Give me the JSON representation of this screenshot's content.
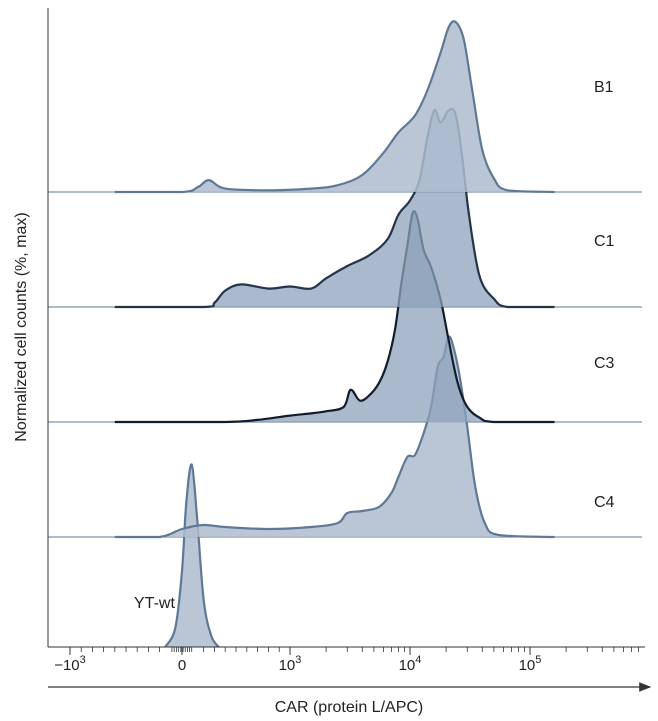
{
  "chart_data": {
    "type": "area",
    "title": "",
    "xlabel": "CAR (protein L/APC)",
    "ylabel": "Normalized cell counts (%, max)",
    "x_scale": "biexponential",
    "x_ticks": [
      {
        "label": "−10",
        "exp": "3",
        "value": -1000
      },
      {
        "label": "0",
        "exp": "",
        "value": 0
      },
      {
        "label": "10",
        "exp": "3",
        "value": 1000
      },
      {
        "label": "10",
        "exp": "4",
        "value": 10000
      },
      {
        "label": "10",
        "exp": "5",
        "value": 100000
      }
    ],
    "series": [
      {
        "name": "B1",
        "color": "#aebccf",
        "stroke": "#5f7896",
        "points": [
          [
            -600,
            0
          ],
          [
            0,
            0
          ],
          [
            150,
            3
          ],
          [
            250,
            7
          ],
          [
            400,
            2
          ],
          [
            800,
            1
          ],
          [
            1500,
            2
          ],
          [
            2500,
            4
          ],
          [
            4000,
            10
          ],
          [
            6000,
            23
          ],
          [
            8000,
            35
          ],
          [
            11000,
            45
          ],
          [
            14000,
            60
          ],
          [
            18000,
            82
          ],
          [
            21000,
            97
          ],
          [
            24000,
            100
          ],
          [
            28000,
            90
          ],
          [
            33000,
            60
          ],
          [
            40000,
            25
          ],
          [
            50000,
            8
          ],
          [
            65000,
            1
          ],
          [
            160000,
            0
          ]
        ]
      },
      {
        "name": "C1",
        "color": "#8da2bb",
        "stroke": "#23344b",
        "points": [
          [
            -600,
            0
          ],
          [
            200,
            0
          ],
          [
            300,
            2
          ],
          [
            400,
            8
          ],
          [
            550,
            11
          ],
          [
            800,
            9
          ],
          [
            1000,
            10
          ],
          [
            1500,
            9
          ],
          [
            2000,
            14
          ],
          [
            3000,
            20
          ],
          [
            4500,
            25
          ],
          [
            6500,
            33
          ],
          [
            8000,
            45
          ],
          [
            10000,
            52
          ],
          [
            12000,
            62
          ],
          [
            14000,
            83
          ],
          [
            16000,
            96
          ],
          [
            18000,
            90
          ],
          [
            21000,
            96
          ],
          [
            24000,
            94
          ],
          [
            27000,
            75
          ],
          [
            31000,
            45
          ],
          [
            38000,
            15
          ],
          [
            50000,
            4
          ],
          [
            65000,
            0
          ],
          [
            160000,
            0
          ]
        ]
      },
      {
        "name": "C3",
        "color": "#8da2bb",
        "stroke": "#121c2b",
        "points": [
          [
            -600,
            0
          ],
          [
            400,
            0
          ],
          [
            700,
            1
          ],
          [
            1000,
            3
          ],
          [
            1500,
            4
          ],
          [
            2000,
            5
          ],
          [
            2800,
            7
          ],
          [
            3200,
            15
          ],
          [
            3800,
            10
          ],
          [
            4500,
            12
          ],
          [
            5500,
            18
          ],
          [
            6500,
            28
          ],
          [
            7500,
            43
          ],
          [
            8500,
            65
          ],
          [
            9500,
            82
          ],
          [
            10500,
            97
          ],
          [
            11500,
            95
          ],
          [
            13000,
            80
          ],
          [
            15000,
            72
          ],
          [
            18000,
            57
          ],
          [
            21000,
            38
          ],
          [
            25000,
            18
          ],
          [
            30000,
            7
          ],
          [
            38000,
            2
          ],
          [
            50000,
            0
          ],
          [
            160000,
            0
          ]
        ]
      },
      {
        "name": "C4",
        "color": "#aebccf",
        "stroke": "#5f7896",
        "points": [
          [
            -600,
            0
          ],
          [
            -200,
            0
          ],
          [
            0,
            4
          ],
          [
            200,
            6
          ],
          [
            400,
            5
          ],
          [
            800,
            4
          ],
          [
            1500,
            5
          ],
          [
            2500,
            7
          ],
          [
            3000,
            12
          ],
          [
            4000,
            13
          ],
          [
            5500,
            15
          ],
          [
            7000,
            22
          ],
          [
            8000,
            30
          ],
          [
            9500,
            40
          ],
          [
            11000,
            41
          ],
          [
            13000,
            52
          ],
          [
            15000,
            65
          ],
          [
            17000,
            85
          ],
          [
            19000,
            90
          ],
          [
            21000,
            100
          ],
          [
            23000,
            95
          ],
          [
            26000,
            80
          ],
          [
            30000,
            55
          ],
          [
            35000,
            25
          ],
          [
            42000,
            7
          ],
          [
            55000,
            1
          ],
          [
            160000,
            0
          ]
        ]
      },
      {
        "name": "YT-wt",
        "color": "#aebccf",
        "stroke": "#5f7896",
        "points": [
          [
            -150,
            0
          ],
          [
            -60,
            10
          ],
          [
            0,
            40
          ],
          [
            40,
            76
          ],
          [
            90,
            96
          ],
          [
            140,
            68
          ],
          [
            200,
            25
          ],
          [
            270,
            6
          ],
          [
            340,
            0
          ]
        ]
      }
    ],
    "legend": "labels beside each histogram"
  }
}
